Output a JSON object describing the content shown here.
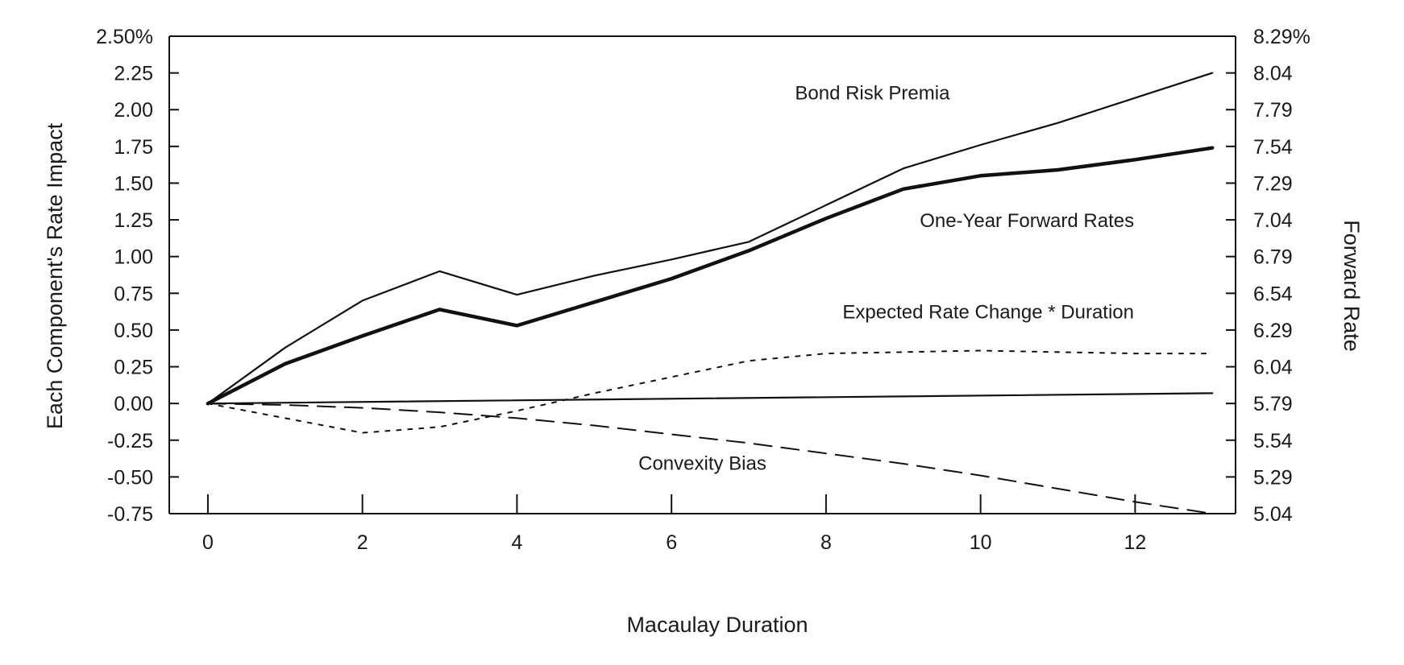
{
  "chart_data": {
    "type": "line",
    "xlabel": "Macaulay Duration",
    "ylabel_left": "Each Component's Rate Impact",
    "ylabel_right": "Forward Rate",
    "xlim": [
      -0.5,
      13.3
    ],
    "ylim_left": [
      -0.75,
      2.5
    ],
    "ylim_right": [
      5.04,
      8.29
    ],
    "x_ticks": [
      0,
      2,
      4,
      6,
      8,
      10,
      12
    ],
    "x_tick_labels": [
      "0",
      "2",
      "4",
      "6",
      "8",
      "10",
      "12"
    ],
    "y_left_ticks": [
      2.5,
      2.25,
      2.0,
      1.75,
      1.5,
      1.25,
      1.0,
      0.75,
      0.5,
      0.25,
      0.0,
      -0.25,
      -0.5,
      -0.75
    ],
    "y_left_tick_labels": [
      "2.50%",
      "2.25",
      "2.00",
      "1.75",
      "1.50",
      "1.25",
      "1.00",
      "0.75",
      "0.50",
      "0.25",
      "0.00",
      "-0.25",
      "-0.50",
      "-0.75"
    ],
    "y_right_ticks": [
      8.29,
      8.04,
      7.79,
      7.54,
      7.29,
      7.04,
      6.79,
      6.54,
      6.29,
      6.04,
      5.79,
      5.54,
      5.29,
      5.04
    ],
    "y_right_tick_labels": [
      "8.29%",
      "8.04",
      "7.79",
      "7.54",
      "7.29",
      "7.04",
      "6.79",
      "6.54",
      "6.29",
      "6.04",
      "5.79",
      "5.54",
      "5.29",
      "5.04"
    ],
    "grid": false,
    "series": [
      {
        "name": "Bond Risk Premia",
        "style": "solid-thin",
        "x": [
          0,
          1,
          2,
          3,
          4,
          5,
          6,
          7,
          8,
          9,
          10,
          11,
          12,
          13
        ],
        "y": [
          0.0,
          0.38,
          0.7,
          0.9,
          0.74,
          0.87,
          0.98,
          1.1,
          1.35,
          1.6,
          1.76,
          1.91,
          2.08,
          2.25
        ]
      },
      {
        "name": "One-Year Forward Rates",
        "style": "solid-thick",
        "x": [
          0,
          1,
          2,
          3,
          4,
          5,
          6,
          7,
          8,
          9,
          10,
          11,
          12,
          13
        ],
        "y": [
          0.0,
          0.27,
          0.46,
          0.64,
          0.53,
          0.69,
          0.85,
          1.04,
          1.26,
          1.46,
          1.55,
          1.59,
          1.66,
          1.74
        ]
      },
      {
        "name": "Expected Rate Change * Duration",
        "style": "dotted",
        "x": [
          0,
          1,
          2,
          3,
          4,
          5,
          6,
          7,
          8,
          9,
          10,
          11,
          12,
          13
        ],
        "y": [
          0.0,
          -0.1,
          -0.2,
          -0.16,
          -0.05,
          0.07,
          0.18,
          0.29,
          0.34,
          0.35,
          0.36,
          0.35,
          0.34,
          0.34
        ]
      },
      {
        "name": "Convexity Bias",
        "style": "dashed",
        "x": [
          0,
          1,
          2,
          3,
          4,
          5,
          6,
          7,
          8,
          9,
          10,
          11,
          12,
          13
        ],
        "y": [
          0.0,
          -0.01,
          -0.03,
          -0.06,
          -0.1,
          -0.15,
          -0.21,
          -0.27,
          -0.34,
          -0.41,
          -0.49,
          -0.58,
          -0.67,
          -0.75
        ]
      },
      {
        "name": "",
        "style": "solid-thin",
        "x": [
          0,
          13
        ],
        "y": [
          0.0,
          0.07
        ]
      }
    ],
    "annotations": [
      {
        "text": "Bond Risk Premia",
        "x": 8.6,
        "y": 2.07
      },
      {
        "text": "One-Year Forward Rates",
        "x": 10.6,
        "y": 1.2
      },
      {
        "text": "Expected Rate Change * Duration",
        "x": 10.1,
        "y": 0.58
      },
      {
        "text": "Convexity Bias",
        "x": 6.4,
        "y": -0.45
      }
    ]
  }
}
